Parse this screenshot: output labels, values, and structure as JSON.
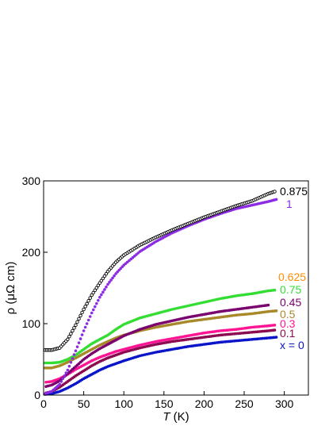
{
  "chart_data": {
    "type": "scatter",
    "xlabel_symbol": "T",
    "xlabel_unit": " (K)",
    "ylabel": "ρ (μΩ cm)",
    "xlim": [
      0,
      330
    ],
    "ylim": [
      0,
      300
    ],
    "x_ticks": [
      0,
      50,
      100,
      150,
      200,
      250,
      300
    ],
    "y_ticks": [
      0,
      100,
      200,
      300
    ],
    "grid": false,
    "legend": "inline labels at right end of curves",
    "series": [
      {
        "name": "0.875",
        "color": "#000000",
        "marker": "open-circle",
        "points": [
          [
            2,
            63
          ],
          [
            10,
            63
          ],
          [
            20,
            66
          ],
          [
            30,
            78
          ],
          [
            40,
            98
          ],
          [
            50,
            120
          ],
          [
            60,
            140
          ],
          [
            70,
            157
          ],
          [
            80,
            173
          ],
          [
            90,
            186
          ],
          [
            100,
            196
          ],
          [
            120,
            210
          ],
          [
            140,
            221
          ],
          [
            160,
            231
          ],
          [
            180,
            240
          ],
          [
            200,
            249
          ],
          [
            220,
            257
          ],
          [
            240,
            265
          ],
          [
            260,
            272
          ],
          [
            280,
            282
          ],
          [
            288,
            285
          ]
        ]
      },
      {
        "name": "1",
        "color": "#8B2BE2",
        "marker": "filled-circle",
        "points": [
          [
            2,
            2
          ],
          [
            10,
            5
          ],
          [
            20,
            15
          ],
          [
            30,
            35
          ],
          [
            40,
            62
          ],
          [
            50,
            90
          ],
          [
            60,
            115
          ],
          [
            70,
            137
          ],
          [
            80,
            155
          ],
          [
            90,
            170
          ],
          [
            100,
            182
          ],
          [
            120,
            201
          ],
          [
            140,
            215
          ],
          [
            160,
            227
          ],
          [
            180,
            237
          ],
          [
            200,
            246
          ],
          [
            220,
            254
          ],
          [
            240,
            261
          ],
          [
            260,
            266
          ],
          [
            280,
            271
          ],
          [
            290,
            274
          ]
        ]
      },
      {
        "name": "0.625",
        "color": "#FF8C00",
        "marker": "filled-circle",
        "points": []
      },
      {
        "name": "0.75",
        "color": "#33DD33",
        "marker": "filled-circle",
        "points": [
          [
            2,
            45
          ],
          [
            10,
            45
          ],
          [
            20,
            46
          ],
          [
            30,
            50
          ],
          [
            40,
            56
          ],
          [
            50,
            64
          ],
          [
            60,
            72
          ],
          [
            70,
            78
          ],
          [
            80,
            84
          ],
          [
            90,
            92
          ],
          [
            100,
            99
          ],
          [
            120,
            108
          ],
          [
            140,
            114
          ],
          [
            160,
            120
          ],
          [
            180,
            125
          ],
          [
            200,
            130
          ],
          [
            220,
            135
          ],
          [
            240,
            139
          ],
          [
            260,
            142
          ],
          [
            280,
            146
          ],
          [
            288,
            147
          ]
        ]
      },
      {
        "name": "0.45",
        "color": "#7A006E",
        "marker": "filled-circle",
        "points": [
          [
            3,
            12
          ],
          [
            10,
            14
          ],
          [
            20,
            20
          ],
          [
            30,
            30
          ],
          [
            40,
            40
          ],
          [
            50,
            50
          ],
          [
            60,
            58
          ],
          [
            70,
            65
          ],
          [
            80,
            71
          ],
          [
            90,
            77
          ],
          [
            100,
            83
          ],
          [
            120,
            92
          ],
          [
            140,
            99
          ],
          [
            160,
            104
          ],
          [
            180,
            109
          ],
          [
            200,
            113
          ],
          [
            220,
            117
          ],
          [
            240,
            120
          ],
          [
            260,
            123
          ],
          [
            280,
            126
          ]
        ]
      },
      {
        "name": "0.5",
        "color": "#A8892A",
        "marker": "filled-circle",
        "points": [
          [
            2,
            38
          ],
          [
            10,
            38
          ],
          [
            20,
            41
          ],
          [
            30,
            46
          ],
          [
            40,
            52
          ],
          [
            50,
            58
          ],
          [
            60,
            64
          ],
          [
            70,
            70
          ],
          [
            80,
            75
          ],
          [
            90,
            80
          ],
          [
            100,
            84
          ],
          [
            120,
            90
          ],
          [
            140,
            95
          ],
          [
            160,
            99
          ],
          [
            180,
            103
          ],
          [
            200,
            106
          ],
          [
            220,
            109
          ],
          [
            240,
            112
          ],
          [
            260,
            114
          ],
          [
            280,
            117
          ],
          [
            290,
            118
          ]
        ]
      },
      {
        "name": "0.3",
        "color": "#FF1493",
        "marker": "filled-circle",
        "points": [
          [
            3,
            18
          ],
          [
            10,
            19
          ],
          [
            20,
            23
          ],
          [
            30,
            29
          ],
          [
            40,
            36
          ],
          [
            50,
            42
          ],
          [
            60,
            48
          ],
          [
            70,
            53
          ],
          [
            80,
            57
          ],
          [
            90,
            61
          ],
          [
            100,
            64
          ],
          [
            120,
            70
          ],
          [
            140,
            75
          ],
          [
            160,
            79
          ],
          [
            180,
            83
          ],
          [
            200,
            87
          ],
          [
            220,
            90
          ],
          [
            240,
            92
          ],
          [
            260,
            95
          ],
          [
            280,
            97
          ],
          [
            288,
            98
          ]
        ]
      },
      {
        "name": "0.1",
        "color": "#8B0A50",
        "marker": "filled-circle",
        "points": [
          [
            3,
            3
          ],
          [
            10,
            5
          ],
          [
            20,
            11
          ],
          [
            30,
            19
          ],
          [
            40,
            27
          ],
          [
            50,
            34
          ],
          [
            60,
            41
          ],
          [
            70,
            47
          ],
          [
            80,
            52
          ],
          [
            90,
            56
          ],
          [
            100,
            60
          ],
          [
            120,
            66
          ],
          [
            140,
            71
          ],
          [
            160,
            75
          ],
          [
            180,
            78
          ],
          [
            200,
            81
          ],
          [
            220,
            84
          ],
          [
            240,
            86
          ],
          [
            260,
            88
          ],
          [
            280,
            90
          ],
          [
            288,
            91
          ]
        ]
      },
      {
        "name": "x = 0",
        "color": "#0A14C8",
        "marker": "filled-circle",
        "points": [
          [
            2,
            1
          ],
          [
            10,
            2
          ],
          [
            20,
            5
          ],
          [
            30,
            10
          ],
          [
            40,
            16
          ],
          [
            50,
            23
          ],
          [
            60,
            29
          ],
          [
            70,
            35
          ],
          [
            80,
            40
          ],
          [
            90,
            44
          ],
          [
            100,
            48
          ],
          [
            120,
            55
          ],
          [
            140,
            60
          ],
          [
            160,
            64
          ],
          [
            180,
            68
          ],
          [
            200,
            71
          ],
          [
            220,
            74
          ],
          [
            240,
            76
          ],
          [
            260,
            78
          ],
          [
            280,
            80
          ],
          [
            290,
            81
          ]
        ]
      }
    ]
  }
}
